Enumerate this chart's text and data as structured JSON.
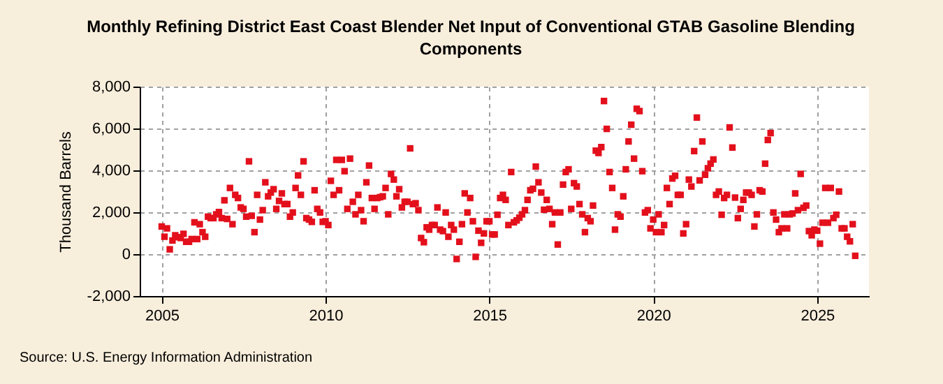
{
  "chart_data": {
    "type": "scatter",
    "title": "Monthly Refining District East Coast Blender Net Input of Conventional GTAB Gasoline Blending Components",
    "ylabel": "Thousand Barrels",
    "annotations": [
      "Source: U.S. Energy Information Administration"
    ],
    "x": [
      "2005-01",
      "2005-02",
      "2005-03",
      "2005-04",
      "2005-05",
      "2005-06",
      "2005-07",
      "2005-08",
      "2005-09",
      "2005-10",
      "2005-11",
      "2005-12",
      "2006-01",
      "2006-02",
      "2006-03",
      "2006-04",
      "2006-05",
      "2006-06",
      "2006-07",
      "2006-08",
      "2006-09",
      "2006-10",
      "2006-11",
      "2006-12",
      "2007-01",
      "2007-02",
      "2007-03",
      "2007-04",
      "2007-05",
      "2007-06",
      "2007-07",
      "2007-08",
      "2007-09",
      "2007-10",
      "2007-11",
      "2007-12",
      "2008-01",
      "2008-02",
      "2008-03",
      "2008-04",
      "2008-05",
      "2008-06",
      "2008-07",
      "2008-08",
      "2008-09",
      "2008-10",
      "2008-11",
      "2008-12",
      "2009-01",
      "2009-02",
      "2009-03",
      "2009-04",
      "2009-05",
      "2009-06",
      "2009-07",
      "2009-08",
      "2009-09",
      "2009-10",
      "2009-11",
      "2009-12",
      "2010-01",
      "2010-02",
      "2010-03",
      "2010-04",
      "2010-05",
      "2010-06",
      "2010-07",
      "2010-08",
      "2010-09",
      "2010-10",
      "2010-11",
      "2010-12",
      "2011-01",
      "2011-02",
      "2011-03",
      "2011-04",
      "2011-05",
      "2011-06",
      "2011-07",
      "2011-08",
      "2011-09",
      "2011-10",
      "2011-11",
      "2011-12",
      "2012-01",
      "2012-02",
      "2012-03",
      "2012-04",
      "2012-05",
      "2012-06",
      "2012-07",
      "2012-08",
      "2012-09",
      "2012-10",
      "2012-11",
      "2012-12",
      "2013-01",
      "2013-02",
      "2013-03",
      "2013-04",
      "2013-05",
      "2013-06",
      "2013-07",
      "2013-08",
      "2013-09",
      "2013-10",
      "2013-11",
      "2013-12",
      "2014-01",
      "2014-02",
      "2014-03",
      "2014-04",
      "2014-05",
      "2014-06",
      "2014-07",
      "2014-08",
      "2014-09",
      "2014-10",
      "2014-11",
      "2014-12",
      "2015-01",
      "2015-02",
      "2015-03",
      "2015-04",
      "2015-05",
      "2015-06",
      "2015-07",
      "2015-08",
      "2015-09",
      "2015-10",
      "2015-11",
      "2015-12",
      "2016-01",
      "2016-02",
      "2016-03",
      "2016-04",
      "2016-05",
      "2016-06",
      "2016-07",
      "2016-08",
      "2016-09",
      "2016-10",
      "2016-11",
      "2016-12",
      "2017-01",
      "2017-02",
      "2017-03",
      "2017-04",
      "2017-05",
      "2017-06",
      "2017-07",
      "2017-08",
      "2017-09",
      "2017-10",
      "2017-11",
      "2017-12",
      "2018-01",
      "2018-02",
      "2018-03",
      "2018-04",
      "2018-05",
      "2018-06",
      "2018-07",
      "2018-08",
      "2018-09",
      "2018-10",
      "2018-11",
      "2018-12",
      "2019-01",
      "2019-02",
      "2019-03",
      "2019-04",
      "2019-05",
      "2019-06",
      "2019-07",
      "2019-08",
      "2019-09",
      "2019-10",
      "2019-11",
      "2019-12",
      "2020-01",
      "2020-02",
      "2020-03",
      "2020-04",
      "2020-05",
      "2020-06",
      "2020-07",
      "2020-08",
      "2020-09",
      "2020-10",
      "2020-11",
      "2020-12",
      "2021-01",
      "2021-02",
      "2021-03",
      "2021-04",
      "2021-05",
      "2021-06",
      "2021-07",
      "2021-08",
      "2021-09",
      "2021-10",
      "2021-11",
      "2021-12",
      "2022-01",
      "2022-02",
      "2022-03",
      "2022-04",
      "2022-05",
      "2022-06",
      "2022-07",
      "2022-08",
      "2022-09",
      "2022-10",
      "2022-11",
      "2022-12",
      "2023-01",
      "2023-02",
      "2023-03",
      "2023-04",
      "2023-05",
      "2023-06",
      "2023-07",
      "2023-08",
      "2023-09",
      "2023-10",
      "2023-11",
      "2023-12",
      "2024-01",
      "2024-02",
      "2024-03",
      "2024-04",
      "2024-05",
      "2024-06",
      "2024-07",
      "2024-08",
      "2024-09",
      "2024-10",
      "2024-11",
      "2024-12",
      "2025-01",
      "2025-02",
      "2025-03",
      "2025-04",
      "2025-05",
      "2025-06",
      "2025-07",
      "2025-08",
      "2025-09",
      "2025-10",
      "2025-11",
      "2025-12",
      "2026-01",
      "2026-02",
      "2026-03"
    ],
    "series": [
      {
        "color": "#e3101c",
        "values": [
          1320,
          830,
          1230,
          230,
          650,
          900,
          810,
          770,
          970,
          590,
          590,
          720,
          1520,
          720,
          1430,
          1050,
          830,
          1790,
          1720,
          1720,
          1900,
          2010,
          1720,
          2570,
          1680,
          3160,
          1430,
          2830,
          2680,
          2230,
          2160,
          1790,
          4430,
          1830,
          1050,
          2830,
          1650,
          2100,
          3430,
          2760,
          2940,
          3100,
          2160,
          2540,
          2900,
          2390,
          2390,
          1790,
          1990,
          3160,
          3760,
          2830,
          4430,
          1720,
          1650,
          1540,
          3050,
          2160,
          1990,
          1540,
          1570,
          1390,
          3500,
          2830,
          4500,
          3050,
          4500,
          3960,
          2160,
          4560,
          2500,
          1900,
          2830,
          2100,
          1570,
          3430,
          4230,
          2680,
          2160,
          2680,
          2720,
          2760,
          3160,
          1900,
          3830,
          3560,
          2760,
          3100,
          2230,
          2500,
          2500,
          5050,
          2390,
          2430,
          2100,
          770,
          570,
          1280,
          1170,
          1390,
          1390,
          2230,
          1170,
          1100,
          1990,
          830,
          1390,
          1170,
          -230,
          590,
          1430,
          2900,
          1990,
          2680,
          1570,
          -130,
          1120,
          540,
          990,
          1570,
          1570,
          940,
          940,
          1880,
          2680,
          2830,
          2590,
          1390,
          3920,
          1520,
          1610,
          1740,
          1900,
          2100,
          2590,
          3050,
          3120,
          4180,
          3430,
          2940,
          2120,
          2590,
          2160,
          1430,
          1990,
          460,
          1990,
          3320,
          3920,
          4050,
          2160,
          3390,
          3230,
          2390,
          1900,
          1050,
          1720,
          1570,
          2320,
          4940,
          4830,
          5110,
          7310,
          5980,
          3920,
          3160,
          1170,
          1900,
          1790,
          2760,
          4050,
          5380,
          6180,
          4560,
          6940,
          6830,
          3960,
          1990,
          2100,
          1230,
          1650,
          1050,
          1900,
          1050,
          1390,
          3160,
          2390,
          3610,
          3740,
          2830,
          2830,
          990,
          1430,
          3560,
          3230,
          4920,
          6520,
          3520,
          5380,
          3790,
          4100,
          4320,
          4520,
          2830,
          2990,
          1880,
          2680,
          2830,
          6050,
          5090,
          2700,
          1720,
          2160,
          2590,
          2940,
          2940,
          2830,
          1320,
          1900,
          3050,
          2990,
          4320,
          5450,
          5780,
          1990,
          1650,
          1050,
          1230,
          1900,
          1230,
          1900,
          1940,
          2900,
          2100,
          3830,
          2210,
          2320,
          1100,
          900,
          1170,
          1120,
          500,
          1500,
          3160,
          1500,
          3160,
          1720,
          1880,
          2990,
          1230,
          1230,
          830,
          610,
          1430,
          -80
        ]
      }
    ],
    "xlim": [
      "2004-05",
      "2026-08"
    ],
    "xticks": [
      "2005",
      "2010",
      "2015",
      "2020",
      "2025"
    ],
    "ylim": [
      -2000,
      8000
    ],
    "yticks": [
      {
        "value": -2000,
        "label": "-2,000"
      },
      {
        "value": 0,
        "label": "0"
      },
      {
        "value": 2000,
        "label": "2,000"
      },
      {
        "value": 4000,
        "label": "4,000"
      },
      {
        "value": 6000,
        "label": "6,000"
      },
      {
        "value": 8000,
        "label": "8,000"
      }
    ],
    "grid": true,
    "marker": "square"
  }
}
